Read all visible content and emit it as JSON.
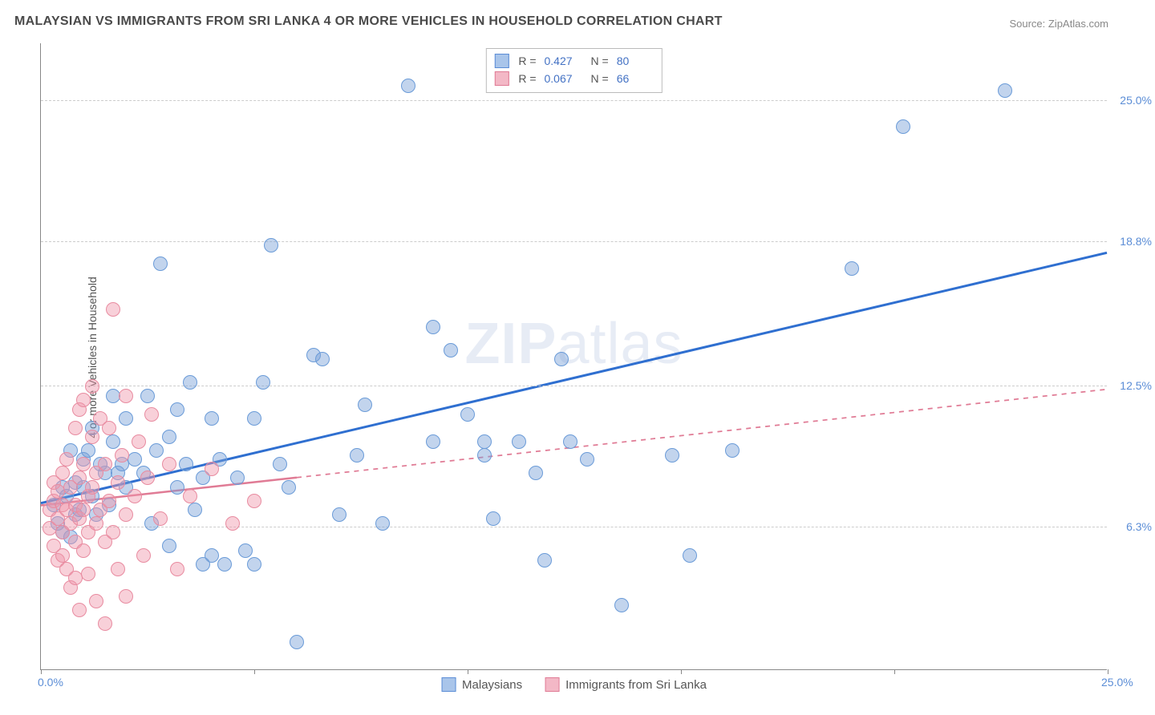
{
  "title": "MALAYSIAN VS IMMIGRANTS FROM SRI LANKA 4 OR MORE VEHICLES IN HOUSEHOLD CORRELATION CHART",
  "source": "Source: ZipAtlas.com",
  "y_axis_label": "4 or more Vehicles in Household",
  "watermark_bold": "ZIP",
  "watermark_rest": "atlas",
  "chart": {
    "type": "scatter",
    "background_color": "#ffffff",
    "grid_color": "#cccccc",
    "axis_color": "#888888",
    "tick_label_color": "#5b8dd6",
    "tick_label_fontsize": 14,
    "title_fontsize": 16,
    "title_color": "#4a4a4a",
    "marker_radius": 9,
    "marker_stroke_width": 1.5,
    "xlim": [
      0,
      25
    ],
    "ylim": [
      0,
      27.5
    ],
    "x_ticks": [
      0,
      5,
      10,
      15,
      20,
      25
    ],
    "x_tick_labels_shown": {
      "0": "0.0%",
      "25": "25.0%"
    },
    "y_gridlines": [
      6.3,
      12.5,
      18.8,
      25.0
    ],
    "y_tick_labels": [
      "6.3%",
      "12.5%",
      "18.8%",
      "25.0%"
    ],
    "series": [
      {
        "name": "Malaysians",
        "fill_color": "rgba(120,160,215,0.45)",
        "stroke_color": "#6a9bd8",
        "swatch_fill": "#a9c5ea",
        "swatch_border": "#5b8dd6",
        "r_value": "0.427",
        "n_value": "80",
        "trend": {
          "y_at_x0": 7.3,
          "y_at_x25": 18.3,
          "color": "#2f6fd0",
          "width": 3,
          "solid_until_x": 25
        },
        "points": [
          [
            0.3,
            7.2
          ],
          [
            0.4,
            6.4
          ],
          [
            0.5,
            8.0
          ],
          [
            0.5,
            6.0
          ],
          [
            0.6,
            7.6
          ],
          [
            0.7,
            5.8
          ],
          [
            0.7,
            9.6
          ],
          [
            0.8,
            6.8
          ],
          [
            0.8,
            8.2
          ],
          [
            0.9,
            7.0
          ],
          [
            1.0,
            9.2
          ],
          [
            1.0,
            8.0
          ],
          [
            1.1,
            9.6
          ],
          [
            1.2,
            7.6
          ],
          [
            1.2,
            10.6
          ],
          [
            1.3,
            6.8
          ],
          [
            1.4,
            9.0
          ],
          [
            1.5,
            8.6
          ],
          [
            1.6,
            7.2
          ],
          [
            1.7,
            10.0
          ],
          [
            1.7,
            12.0
          ],
          [
            1.8,
            8.6
          ],
          [
            1.9,
            9.0
          ],
          [
            2.0,
            8.0
          ],
          [
            2.0,
            11.0
          ],
          [
            2.2,
            9.2
          ],
          [
            2.4,
            8.6
          ],
          [
            2.5,
            12.0
          ],
          [
            2.6,
            6.4
          ],
          [
            2.7,
            9.6
          ],
          [
            2.8,
            17.8
          ],
          [
            3.0,
            10.2
          ],
          [
            3.0,
            5.4
          ],
          [
            3.2,
            11.4
          ],
          [
            3.2,
            8.0
          ],
          [
            3.4,
            9.0
          ],
          [
            3.5,
            12.6
          ],
          [
            3.6,
            7.0
          ],
          [
            3.8,
            8.4
          ],
          [
            4.0,
            11.0
          ],
          [
            4.0,
            5.0
          ],
          [
            4.2,
            9.2
          ],
          [
            4.3,
            4.6
          ],
          [
            4.6,
            8.4
          ],
          [
            4.8,
            5.2
          ],
          [
            5.0,
            11.0
          ],
          [
            5.2,
            12.6
          ],
          [
            5.4,
            18.6
          ],
          [
            5.6,
            9.0
          ],
          [
            5.8,
            8.0
          ],
          [
            6.0,
            1.2
          ],
          [
            6.4,
            13.8
          ],
          [
            6.6,
            13.6
          ],
          [
            7.0,
            6.8
          ],
          [
            7.4,
            9.4
          ],
          [
            7.6,
            11.6
          ],
          [
            8.0,
            6.4
          ],
          [
            8.6,
            25.6
          ],
          [
            9.2,
            10.0
          ],
          [
            9.2,
            15.0
          ],
          [
            9.6,
            14.0
          ],
          [
            10.0,
            11.2
          ],
          [
            10.4,
            9.4
          ],
          [
            10.4,
            10.0
          ],
          [
            10.6,
            6.6
          ],
          [
            11.2,
            10.0
          ],
          [
            11.6,
            8.6
          ],
          [
            11.8,
            4.8
          ],
          [
            12.2,
            13.6
          ],
          [
            12.4,
            10.0
          ],
          [
            12.8,
            9.2
          ],
          [
            13.6,
            2.8
          ],
          [
            14.8,
            9.4
          ],
          [
            15.2,
            5.0
          ],
          [
            16.2,
            9.6
          ],
          [
            19.0,
            17.6
          ],
          [
            20.2,
            23.8
          ],
          [
            22.6,
            25.4
          ],
          [
            5.0,
            4.6
          ],
          [
            3.8,
            4.6
          ]
        ]
      },
      {
        "name": "Immigrants from Sri Lanka",
        "fill_color": "rgba(240,150,170,0.45)",
        "stroke_color": "#e88ba0",
        "swatch_fill": "#f3b8c6",
        "swatch_border": "#e07b95",
        "r_value": "0.067",
        "n_value": "66",
        "trend": {
          "y_at_x0": 7.2,
          "y_at_x25": 12.3,
          "color": "#e07b95",
          "width": 2.5,
          "solid_until_x": 6
        },
        "points": [
          [
            0.2,
            7.0
          ],
          [
            0.2,
            6.2
          ],
          [
            0.3,
            7.4
          ],
          [
            0.3,
            5.4
          ],
          [
            0.3,
            8.2
          ],
          [
            0.4,
            6.6
          ],
          [
            0.4,
            7.8
          ],
          [
            0.4,
            4.8
          ],
          [
            0.5,
            6.0
          ],
          [
            0.5,
            7.2
          ],
          [
            0.5,
            8.6
          ],
          [
            0.5,
            5.0
          ],
          [
            0.6,
            7.0
          ],
          [
            0.6,
            9.2
          ],
          [
            0.6,
            4.4
          ],
          [
            0.7,
            6.4
          ],
          [
            0.7,
            8.0
          ],
          [
            0.7,
            3.6
          ],
          [
            0.8,
            7.2
          ],
          [
            0.8,
            5.6
          ],
          [
            0.8,
            10.6
          ],
          [
            0.8,
            4.0
          ],
          [
            0.9,
            6.6
          ],
          [
            0.9,
            8.4
          ],
          [
            0.9,
            11.4
          ],
          [
            0.9,
            2.6
          ],
          [
            1.0,
            7.0
          ],
          [
            1.0,
            5.2
          ],
          [
            1.0,
            9.0
          ],
          [
            1.0,
            11.8
          ],
          [
            1.1,
            6.0
          ],
          [
            1.1,
            7.6
          ],
          [
            1.1,
            4.2
          ],
          [
            1.2,
            8.0
          ],
          [
            1.2,
            10.2
          ],
          [
            1.2,
            12.4
          ],
          [
            1.3,
            6.4
          ],
          [
            1.3,
            3.0
          ],
          [
            1.3,
            8.6
          ],
          [
            1.4,
            7.0
          ],
          [
            1.4,
            11.0
          ],
          [
            1.5,
            5.6
          ],
          [
            1.5,
            9.0
          ],
          [
            1.5,
            2.0
          ],
          [
            1.6,
            7.4
          ],
          [
            1.6,
            10.6
          ],
          [
            1.7,
            6.0
          ],
          [
            1.7,
            15.8
          ],
          [
            1.8,
            8.2
          ],
          [
            1.8,
            4.4
          ],
          [
            1.9,
            9.4
          ],
          [
            2.0,
            6.8
          ],
          [
            2.0,
            12.0
          ],
          [
            2.0,
            3.2
          ],
          [
            2.2,
            7.6
          ],
          [
            2.3,
            10.0
          ],
          [
            2.4,
            5.0
          ],
          [
            2.5,
            8.4
          ],
          [
            2.6,
            11.2
          ],
          [
            2.8,
            6.6
          ],
          [
            3.0,
            9.0
          ],
          [
            3.2,
            4.4
          ],
          [
            3.5,
            7.6
          ],
          [
            4.0,
            8.8
          ],
          [
            4.5,
            6.4
          ],
          [
            5.0,
            7.4
          ]
        ]
      }
    ],
    "legend_bottom": [
      {
        "label": "Malaysians",
        "swatch_fill": "#a9c5ea",
        "swatch_border": "#5b8dd6"
      },
      {
        "label": "Immigrants from Sri Lanka",
        "swatch_fill": "#f3b8c6",
        "swatch_border": "#e07b95"
      }
    ],
    "legend_top_labels": {
      "r": "R =",
      "n": "N ="
    }
  }
}
